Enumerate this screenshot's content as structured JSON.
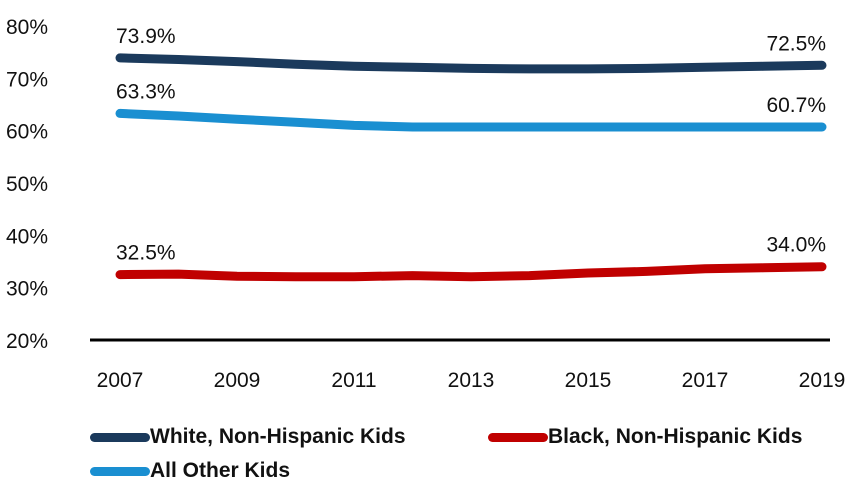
{
  "chart_data": {
    "type": "line",
    "x": [
      "2007",
      "2008",
      "2009",
      "2010",
      "2011",
      "2012",
      "2013",
      "2014",
      "2015",
      "2016",
      "2017",
      "2018",
      "2019"
    ],
    "x_tick_labels": [
      "2007",
      "2009",
      "2011",
      "2013",
      "2015",
      "2017",
      "2019"
    ],
    "y_tick_labels": [
      "20%",
      "30%",
      "40%",
      "50%",
      "60%",
      "70%",
      "80%"
    ],
    "ylim": [
      20,
      80
    ],
    "grid": false,
    "legend_position": "bottom",
    "series": [
      {
        "name": "White, Non-Hispanic Kids",
        "color": "#1b3a5c",
        "values": [
          73.9,
          73.6,
          73.2,
          72.7,
          72.3,
          72.1,
          71.9,
          71.8,
          71.8,
          71.9,
          72.1,
          72.3,
          72.5
        ],
        "start_label": "73.9%",
        "end_label": "72.5%"
      },
      {
        "name": "Black, Non-Hispanic Kids",
        "color": "#c00000",
        "values": [
          32.5,
          32.6,
          32.2,
          32.1,
          32.1,
          32.3,
          32.1,
          32.3,
          32.8,
          33.1,
          33.6,
          33.8,
          34.0
        ],
        "start_label": "32.5%",
        "end_label": "34.0%"
      },
      {
        "name": "All Other Kids",
        "color": "#1a8fd1",
        "values": [
          63.3,
          62.8,
          62.2,
          61.6,
          61.0,
          60.7,
          60.7,
          60.7,
          60.7,
          60.7,
          60.7,
          60.7,
          60.7
        ],
        "start_label": "63.3%",
        "end_label": "60.7%"
      }
    ]
  }
}
